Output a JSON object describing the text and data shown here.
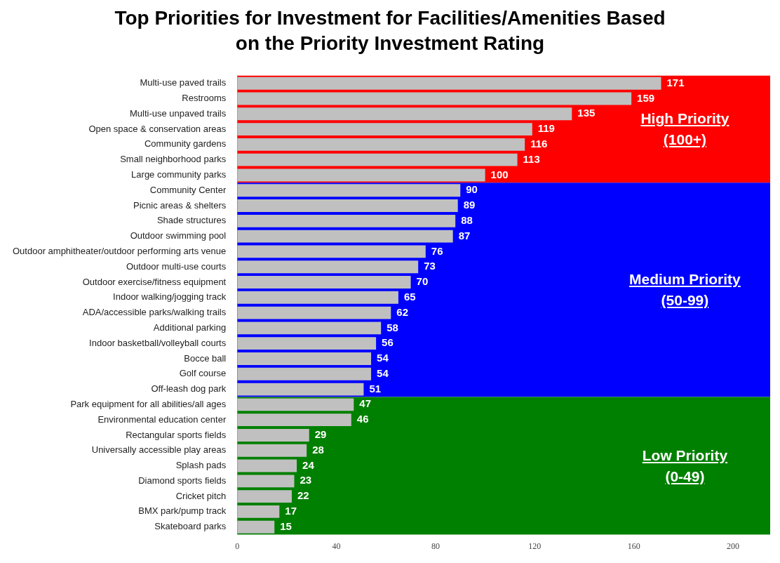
{
  "chart_data": {
    "type": "bar",
    "orientation": "horizontal",
    "title": "Top Priorities for Investment for Facilities/Amenities Based on the Priority Investment Rating",
    "categories": [
      "Multi-use paved trails",
      "Restrooms",
      "Multi-use unpaved trails",
      "Open space & conservation areas",
      "Community gardens",
      "Small neighborhood parks",
      "Large community parks",
      "Community Center",
      "Picnic areas & shelters",
      "Shade structures",
      "Outdoor swimming pool",
      "Outdoor amphitheater/outdoor performing arts venue",
      "Outdoor multi-use courts",
      "Outdoor exercise/fitness equipment",
      "Indoor walking/jogging track",
      "ADA/accessible parks/walking trails",
      "Additional parking",
      "Indoor basketball/volleyball courts",
      "Bocce ball",
      "Golf course",
      "Off-leash dog park",
      "Park equipment for all abilities/all ages",
      "Environmental education center",
      "Rectangular sports fields",
      "Universally accessible play areas",
      "Splash pads",
      "Diamond sports fields",
      "Cricket pitch",
      "BMX park/pump track",
      "Skateboard parks"
    ],
    "values": [
      171,
      159,
      135,
      119,
      116,
      113,
      100,
      90,
      89,
      88,
      87,
      76,
      73,
      70,
      65,
      62,
      58,
      56,
      54,
      54,
      51,
      47,
      46,
      29,
      28,
      24,
      23,
      22,
      17,
      15
    ],
    "color": "#c0c0c0",
    "data_labels": true,
    "xlim": [
      0,
      215
    ],
    "xticks": [
      0,
      40,
      80,
      120,
      160,
      200
    ],
    "grid": false,
    "legend": false,
    "bands": [
      {
        "axis": "y",
        "from": "Multi-use paved trails",
        "to": "Large community parks",
        "label": "High Priority\n(100+)",
        "color": "#ff0000"
      },
      {
        "axis": "y",
        "from": "Community Center",
        "to": "Off-leash dog park",
        "label": "Medium Priority\n(50-99)",
        "color": "#0000ff"
      },
      {
        "axis": "y",
        "from": "Park equipment for all abilities/all ages",
        "to": "Skateboard parks",
        "label": "Low Priority\n(0-49)",
        "color": "#008000"
      }
    ]
  }
}
